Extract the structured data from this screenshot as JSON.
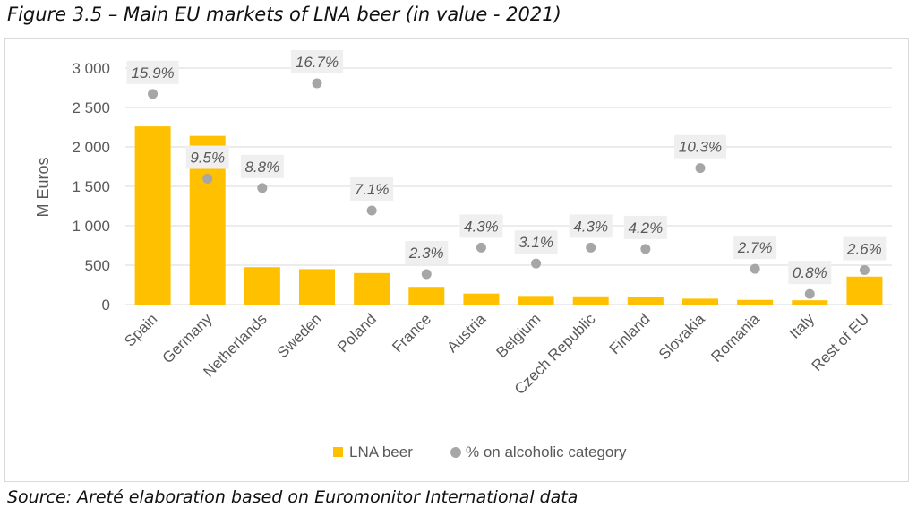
{
  "figure": {
    "title": "Figure 3.5 – Main EU markets of LNA beer (in value - 2021)",
    "source": "Source: Areté elaboration based on Euromonitor International data"
  },
  "colors": {
    "bar": "#FFC000",
    "dot": "#A6A6A6",
    "label_bg": "#EFEFEF",
    "label_text": "#595959",
    "axis_text": "#595959",
    "grid": "#D9D9D9"
  },
  "chart_data": {
    "type": "bar",
    "title": "",
    "ylabel": "M Euros",
    "xlabel": "",
    "ylim": [
      0,
      3000
    ],
    "yticks": [
      0,
      500,
      1000,
      1500,
      2000,
      2500,
      3000
    ],
    "ytick_labels": [
      "0",
      "500",
      "1 000",
      "1 500",
      "2 000",
      "2 500",
      "3 000"
    ],
    "grid": true,
    "legend_position": "bottom",
    "categories": [
      "Spain",
      "Germany",
      "Netherlands",
      "Sweden",
      "Poland",
      "France",
      "Austria",
      "Belgium",
      "Czech Republic",
      "Finland",
      "Slovakia",
      "Romania",
      "Italy",
      "Rest of EU"
    ],
    "series": [
      {
        "name": "LNA beer",
        "type": "bar",
        "values": [
          2260,
          2140,
          475,
          450,
          400,
          225,
          140,
          110,
          105,
          100,
          75,
          60,
          55,
          355
        ]
      },
      {
        "name": "% on alcoholic category",
        "type": "scatter",
        "values": [
          15.9,
          9.5,
          8.8,
          16.7,
          7.1,
          2.3,
          4.3,
          3.1,
          4.3,
          4.2,
          10.3,
          2.7,
          0.8,
          2.6
        ],
        "labels": [
          "15.9%",
          "9.5%",
          "8.8%",
          "16.7%",
          "7.1%",
          "2.3%",
          "4.3%",
          "3.1%",
          "4.3%",
          "4.2%",
          "10.3%",
          "2.7%",
          "0.8%",
          "2.6%"
        ],
        "secondary_axis_max": 17.85
      }
    ]
  }
}
